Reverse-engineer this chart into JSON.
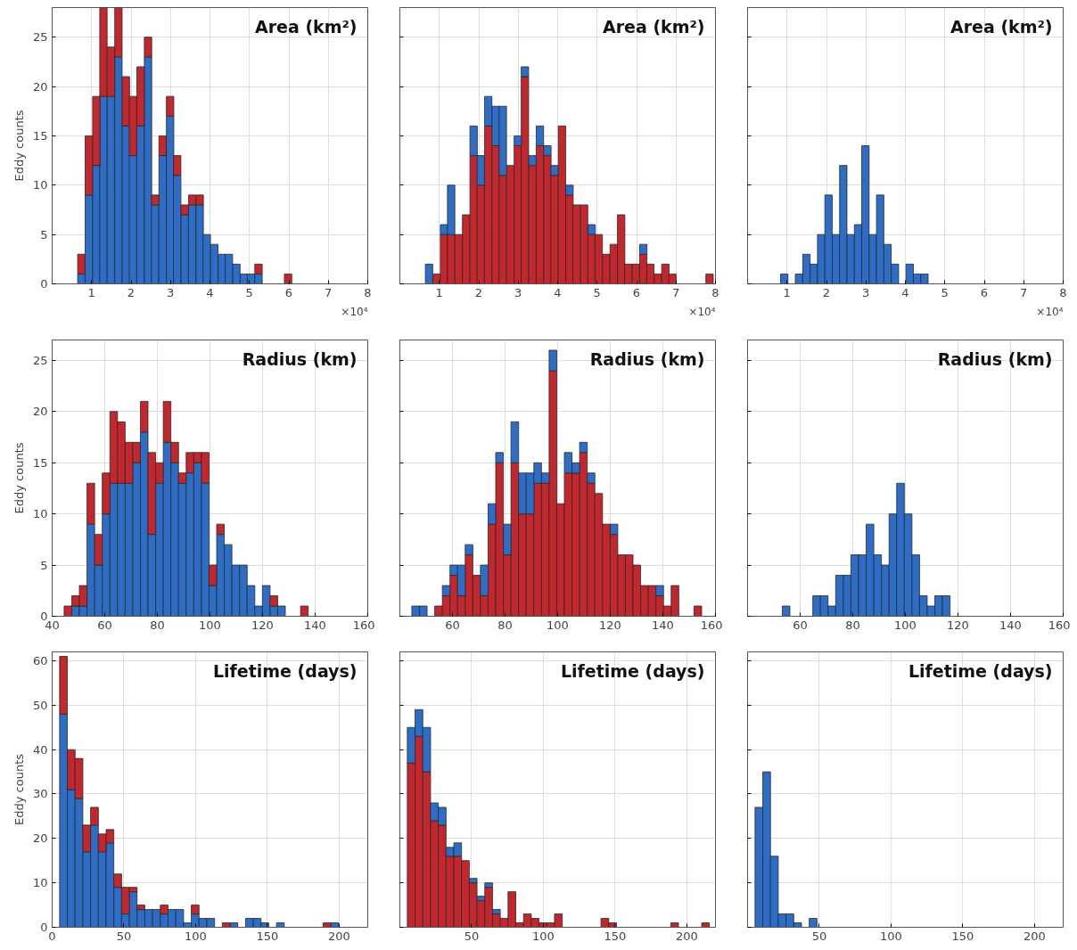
{
  "chart_data": [
    {
      "type": "bar",
      "title": "Area (km²)",
      "ylabel": "Eddy counts",
      "stacked": true,
      "grid": true,
      "annotations": [
        "×10⁴"
      ],
      "x": [
        0.74,
        0.93,
        1.12,
        1.3,
        1.49,
        1.68,
        1.87,
        2.05,
        2.24,
        2.43,
        2.61,
        2.8,
        2.99,
        3.17,
        3.36,
        3.55,
        3.74,
        3.92,
        4.11,
        4.3,
        4.48,
        4.67,
        4.86,
        5.04,
        5.23,
        5.42,
        5.61,
        5.79,
        5.98,
        6.17,
        6.35,
        6.54,
        6.73,
        6.91,
        7.1,
        7.29,
        7.48,
        7.66,
        7.85
      ],
      "series": [
        {
          "color": "#2d6dc5",
          "values": [
            1,
            9,
            12,
            19,
            19,
            23,
            16,
            13,
            16,
            23,
            8,
            13,
            17,
            11,
            7,
            8,
            8,
            5,
            4,
            3,
            3,
            2,
            1,
            1,
            1,
            0,
            0,
            0,
            0,
            0,
            0,
            0,
            0,
            0,
            0,
            0,
            0,
            0,
            0
          ]
        },
        {
          "color": "#c1272d",
          "values": [
            2,
            6,
            7,
            9,
            5,
            5,
            5,
            6,
            6,
            2,
            1,
            2,
            2,
            2,
            1,
            1,
            1,
            0,
            0,
            0,
            0,
            0,
            0,
            0,
            1,
            0,
            0,
            0,
            1,
            0,
            0,
            0,
            0,
            0,
            0,
            0,
            0,
            0,
            0
          ]
        }
      ],
      "xlim": [
        0,
        8
      ],
      "xticks": [
        1,
        2,
        3,
        4,
        5,
        6,
        7,
        8
      ],
      "ylim": [
        0,
        28
      ],
      "yticks": [
        0,
        5,
        10,
        15,
        20,
        25
      ]
    },
    {
      "type": "bar",
      "title": "Area (km²)",
      "stacked": true,
      "grid": true,
      "tick_labels": "x",
      "annotations": [
        "×10⁴"
      ],
      "x": [
        0.74,
        0.93,
        1.12,
        1.3,
        1.49,
        1.68,
        1.87,
        2.05,
        2.24,
        2.43,
        2.61,
        2.8,
        2.99,
        3.17,
        3.36,
        3.55,
        3.74,
        3.92,
        4.11,
        4.3,
        4.48,
        4.67,
        4.86,
        5.04,
        5.23,
        5.42,
        5.61,
        5.79,
        5.98,
        6.17,
        6.35,
        6.54,
        6.73,
        6.91,
        7.1,
        7.29,
        7.48,
        7.66,
        7.85
      ],
      "series": [
        {
          "color": "#c1272d",
          "values": [
            0,
            1,
            5,
            5,
            5,
            7,
            13,
            10,
            16,
            14,
            11,
            12,
            14,
            21,
            12,
            14,
            13,
            11,
            16,
            9,
            8,
            8,
            5,
            5,
            3,
            4,
            7,
            2,
            2,
            3,
            2,
            1,
            2,
            1,
            0,
            0,
            0,
            0,
            1
          ]
        },
        {
          "color": "#2d6dc5",
          "values": [
            2,
            0,
            1,
            5,
            0,
            0,
            3,
            3,
            3,
            4,
            7,
            0,
            1,
            1,
            1,
            2,
            1,
            1,
            0,
            1,
            0,
            0,
            1,
            0,
            0,
            0,
            0,
            0,
            0,
            1,
            0,
            0,
            0,
            0,
            0,
            0,
            0,
            0,
            0
          ]
        }
      ],
      "xlim": [
        0,
        8
      ],
      "xticks": [
        1,
        2,
        3,
        4,
        5,
        6,
        7,
        8
      ],
      "ylim": [
        0,
        28
      ],
      "yticks": [
        0,
        5,
        10,
        15,
        20,
        25
      ]
    },
    {
      "type": "histogram",
      "title": "Area (km²)",
      "stacked": true,
      "grid": true,
      "tick_labels": "x",
      "annotations": [
        "×10⁴"
      ],
      "bins": [
        0.65,
        0.837,
        1.024,
        1.211,
        1.398,
        1.585,
        1.772,
        1.959,
        2.146,
        2.333,
        2.52,
        2.707,
        2.894,
        3.081,
        3.268,
        3.455,
        3.642,
        3.829,
        4.016,
        4.203,
        4.39,
        4.577,
        4.764,
        4.951,
        5.138,
        5.325,
        5.512,
        5.699,
        5.886,
        6.073,
        6.26,
        6.447,
        6.634,
        6.821,
        7.008,
        7.195,
        7.382,
        7.569,
        7.756,
        7.943
      ],
      "series": [
        {
          "color": "#2d6dc5",
          "values": [
            0,
            1,
            0,
            1,
            3,
            2,
            5,
            9,
            5,
            12,
            5,
            6,
            14,
            5,
            9,
            4,
            2,
            0,
            2,
            1,
            1,
            0,
            0,
            0,
            0,
            0,
            0,
            0,
            0,
            0,
            0,
            0,
            0,
            0,
            0,
            0,
            0,
            0,
            0
          ]
        }
      ],
      "xlim": [
        0,
        8
      ],
      "xticks": [
        1,
        2,
        3,
        4,
        5,
        6,
        7,
        8
      ],
      "ylim": [
        0,
        28
      ],
      "yticks": [
        0,
        5,
        10,
        15,
        20,
        25
      ]
    },
    {
      "type": "bar",
      "title": "Radius (km)",
      "ylabel": "Eddy counts",
      "stacked": true,
      "grid": true,
      "x": [
        46,
        48.9,
        51.8,
        54.7,
        57.6,
        60.5,
        63.4,
        66.3,
        69.2,
        72.1,
        75,
        77.9,
        80.8,
        83.7,
        86.6,
        89.5,
        92.4,
        95.3,
        98.2,
        101.1,
        104,
        106.9,
        109.8,
        112.7,
        115.6,
        118.5,
        121.4,
        124.3,
        127.2,
        130.1,
        133,
        135.9,
        138.8,
        141.7,
        144.6,
        147.5,
        150.4,
        153.3
      ],
      "series": [
        {
          "color": "#2d6dc5",
          "values": [
            0,
            1,
            1,
            9,
            5,
            10,
            13,
            13,
            13,
            15,
            18,
            8,
            13,
            17,
            15,
            13,
            14,
            15,
            13,
            3,
            8,
            7,
            5,
            5,
            3,
            1,
            3,
            1,
            1,
            0,
            0,
            0,
            0,
            0,
            0,
            0,
            0,
            0
          ]
        },
        {
          "color": "#c1272d",
          "values": [
            1,
            1,
            2,
            4,
            3,
            4,
            7,
            6,
            4,
            2,
            3,
            8,
            2,
            4,
            2,
            1,
            2,
            1,
            3,
            2,
            1,
            0,
            0,
            0,
            0,
            0,
            0,
            1,
            0,
            0,
            0,
            1,
            0,
            0,
            0,
            0,
            0,
            0
          ]
        }
      ],
      "xlim": [
        40,
        160
      ],
      "xticks": [
        40,
        60,
        80,
        100,
        120,
        140,
        160
      ],
      "ylim": [
        0,
        27
      ],
      "yticks": [
        0,
        5,
        10,
        15,
        20,
        25
      ]
    },
    {
      "type": "bar",
      "title": "Radius (km)",
      "stacked": true,
      "grid": true,
      "tick_labels": "x",
      "x": [
        46,
        48.9,
        51.8,
        54.7,
        57.6,
        60.5,
        63.4,
        66.3,
        69.2,
        72.1,
        75,
        77.9,
        80.8,
        83.7,
        86.6,
        89.5,
        92.4,
        95.3,
        98.2,
        101.1,
        104,
        106.9,
        109.8,
        112.7,
        115.6,
        118.5,
        121.4,
        124.3,
        127.2,
        130.1,
        133,
        135.9,
        138.8,
        141.7,
        144.6,
        147.5,
        150.4,
        153.3
      ],
      "series": [
        {
          "color": "#c1272d",
          "values": [
            0,
            0,
            0,
            1,
            2,
            4,
            2,
            6,
            4,
            2,
            9,
            15,
            6,
            15,
            10,
            10,
            13,
            13,
            24,
            11,
            14,
            14,
            16,
            13,
            12,
            9,
            8,
            6,
            6,
            5,
            3,
            3,
            2,
            1,
            3,
            0,
            0,
            1
          ]
        },
        {
          "color": "#2d6dc5",
          "values": [
            1,
            1,
            0,
            0,
            1,
            1,
            3,
            1,
            0,
            3,
            2,
            1,
            3,
            4,
            4,
            4,
            2,
            1,
            2,
            0,
            2,
            1,
            1,
            1,
            0,
            0,
            1,
            0,
            0,
            0,
            0,
            0,
            1,
            0,
            0,
            0,
            0,
            0
          ]
        }
      ],
      "xlim": [
        40,
        160
      ],
      "xticks": [
        60,
        80,
        100,
        120,
        140,
        160
      ],
      "ylim": [
        0,
        27
      ],
      "yticks": [
        0,
        5,
        10,
        15,
        20,
        25
      ]
    },
    {
      "type": "histogram",
      "title": "Radius (km)",
      "stacked": true,
      "grid": true,
      "tick_labels": "x",
      "bins": [
        44.5,
        47.4,
        50.3,
        53.2,
        56.1,
        59,
        61.9,
        64.8,
        67.7,
        70.6,
        73.5,
        76.4,
        79.3,
        82.2,
        85.1,
        88,
        90.9,
        93.8,
        96.7,
        99.6,
        102.5,
        105.4,
        108.3,
        111.2,
        114.1,
        117,
        119.9,
        122.8,
        125.7,
        128.6,
        131.5,
        134.4,
        137.3,
        140.2,
        143.1,
        146,
        148.9,
        151.8,
        154.7
      ],
      "series": [
        {
          "color": "#2d6dc5",
          "values": [
            0,
            0,
            0,
            1,
            0,
            0,
            0,
            2,
            2,
            1,
            4,
            4,
            6,
            6,
            9,
            6,
            5,
            10,
            13,
            10,
            6,
            2,
            1,
            2,
            2,
            0,
            0,
            0,
            0,
            0,
            0,
            0,
            0,
            0,
            0,
            0,
            0,
            0
          ]
        }
      ],
      "xlim": [
        40,
        160
      ],
      "xticks": [
        60,
        80,
        100,
        120,
        140,
        160
      ],
      "ylim": [
        0,
        27
      ],
      "yticks": [
        0,
        5,
        10,
        15,
        20,
        25
      ]
    },
    {
      "type": "bar",
      "title": "Lifetime (days)",
      "ylabel": "Eddy counts",
      "stacked": true,
      "grid": true,
      "x": [
        7.9,
        13.3,
        18.7,
        24.1,
        29.5,
        34.9,
        40.3,
        45.7,
        51.1,
        56.5,
        61.9,
        67.3,
        72.7,
        78.1,
        83.5,
        88.9,
        94.3,
        99.7,
        105.1,
        110.5,
        115.9,
        121.3,
        126.7,
        132.1,
        137.5,
        142.9,
        148.3,
        153.7,
        159.1,
        164.5,
        169.9,
        175.3,
        180.7,
        186.1,
        191.5,
        196.9,
        202.3,
        207.7,
        213.1
      ],
      "series": [
        {
          "color": "#2d6dc5",
          "values": [
            48,
            31,
            29,
            17,
            23,
            17,
            19,
            9,
            3,
            8,
            4,
            4,
            4,
            3,
            4,
            4,
            1,
            3,
            2,
            2,
            0,
            0,
            1,
            0,
            2,
            2,
            1,
            0,
            1,
            0,
            0,
            0,
            0,
            0,
            0,
            1,
            0,
            0,
            0
          ]
        },
        {
          "color": "#c1272d",
          "values": [
            13,
            9,
            9,
            6,
            4,
            4,
            3,
            3,
            6,
            1,
            1,
            0,
            0,
            2,
            0,
            0,
            0,
            2,
            0,
            0,
            0,
            1,
            0,
            0,
            0,
            0,
            0,
            0,
            0,
            0,
            0,
            0,
            0,
            0,
            1,
            0,
            0,
            0,
            0
          ]
        }
      ],
      "xlim": [
        0,
        220
      ],
      "xticks": [
        0,
        50,
        100,
        150,
        200
      ],
      "ylim": [
        0,
        62
      ],
      "yticks": [
        0,
        10,
        20,
        30,
        40,
        50,
        60
      ]
    },
    {
      "type": "bar",
      "title": "Lifetime (days)",
      "stacked": true,
      "grid": true,
      "tick_labels": "x",
      "x": [
        7.9,
        13.3,
        18.7,
        24.1,
        29.5,
        34.9,
        40.3,
        45.7,
        51.1,
        56.5,
        61.9,
        67.3,
        72.7,
        78.1,
        83.5,
        88.9,
        94.3,
        99.7,
        105.1,
        110.5,
        115.9,
        121.3,
        126.7,
        132.1,
        137.5,
        142.9,
        148.3,
        153.7,
        159.1,
        164.5,
        169.9,
        175.3,
        180.7,
        186.1,
        191.5,
        196.9,
        202.3,
        207.7,
        213.1
      ],
      "series": [
        {
          "color": "#c1272d",
          "values": [
            37,
            43,
            35,
            24,
            23,
            16,
            16,
            15,
            10,
            6,
            9,
            3,
            2,
            8,
            1,
            3,
            2,
            1,
            1,
            3,
            0,
            0,
            0,
            0,
            0,
            2,
            1,
            0,
            0,
            0,
            0,
            0,
            0,
            0,
            1,
            0,
            0,
            0,
            1
          ]
        },
        {
          "color": "#2d6dc5",
          "values": [
            8,
            6,
            10,
            4,
            4,
            2,
            3,
            0,
            1,
            1,
            1,
            1,
            0,
            0,
            0,
            0,
            0,
            0,
            0,
            0,
            0,
            0,
            0,
            0,
            0,
            0,
            0,
            0,
            0,
            0,
            0,
            0,
            0,
            0,
            0,
            0,
            0,
            0,
            0
          ]
        }
      ],
      "xlim": [
        0,
        220
      ],
      "xticks": [
        50,
        100,
        150,
        200
      ],
      "ylim": [
        0,
        62
      ],
      "yticks": [
        0,
        10,
        20,
        30,
        40,
        50,
        60
      ]
    },
    {
      "type": "histogram",
      "title": "Lifetime (days)",
      "stacked": true,
      "grid": true,
      "tick_labels": "x",
      "bins": [
        5.2,
        10.6,
        16,
        21.4,
        26.8,
        32.2,
        37.6,
        43,
        48.4,
        53.8,
        59.2,
        64.6,
        70,
        75.4,
        80.8,
        86.2,
        91.6,
        97,
        102.4,
        107.8,
        113.2,
        118.6,
        124,
        129.4,
        134.8,
        140.2,
        145.6,
        151,
        156.4,
        161.8,
        167.2,
        172.6,
        178,
        183.4,
        188.8,
        194.2,
        199.6,
        205,
        210.4,
        215.8
      ],
      "series": [
        {
          "color": "#2d6dc5",
          "values": [
            27,
            35,
            16,
            3,
            3,
            1,
            0,
            2,
            0,
            0,
            0,
            0,
            0,
            0,
            0,
            0,
            0,
            0,
            0,
            0,
            0,
            0,
            0,
            0,
            0,
            0,
            0,
            0,
            0,
            0,
            0,
            0,
            0,
            0,
            0,
            0,
            0,
            0,
            0
          ]
        }
      ],
      "xlim": [
        0,
        220
      ],
      "xticks": [
        50,
        100,
        150,
        200
      ],
      "ylim": [
        0,
        62
      ],
      "yticks": [
        0,
        10,
        20,
        30,
        40,
        50,
        60
      ]
    }
  ]
}
